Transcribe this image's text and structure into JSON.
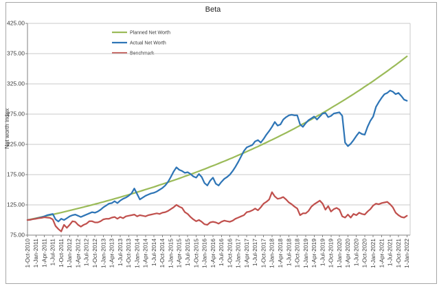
{
  "chart_data": {
    "type": "line",
    "title": "Beta",
    "y_axis_title": "Net worth index",
    "ylim": [
      75,
      425
    ],
    "y_ticks": [
      425,
      375,
      325,
      275,
      225,
      175,
      125,
      75
    ],
    "y_tick_labels": [
      "425.00",
      "375.00",
      "325.00",
      "275.00",
      "225.00",
      "175.00",
      "125.00",
      "75.00"
    ],
    "grid": "horizontal-only",
    "legend_position": "inside-top-left-of-plot",
    "x_resolution": "monthly",
    "months_per_tick": 3,
    "x_tick_labels": [
      "1-Oct-2010",
      "1-Jan-2011",
      "1-Apr-2011",
      "1-Jul-2011",
      "1-Oct-2011",
      "1-Jan-2012",
      "1-Apr-2012",
      "1-Jul-2012",
      "1-Oct-2012",
      "1-Jan-2013",
      "1-Apr-2013",
      "1-Jul-2013",
      "1-Oct-2013",
      "1-Jan-2014",
      "1-Apr-2014",
      "1-Jul-2014",
      "1-Oct-2014",
      "1-Jan-2015",
      "1-Apr-2015",
      "1-Jul-2015",
      "1-Oct-2015",
      "1-Jan-2016",
      "1-Apr-2016",
      "1-Jul-2016",
      "1-Oct-2016",
      "1-Jan-2017",
      "1-Apr-2017",
      "1-Jul-2017",
      "1-Oct-2017",
      "1-Jan-2018",
      "1-Apr-2018",
      "1-Jul-2018",
      "1-Oct-2018",
      "1-Jan-2019",
      "1-Apr-2019",
      "1-Jul-2019",
      "1-Oct-2019",
      "1-Jan-2020",
      "1-Apr-2020",
      "1-Jul-2020",
      "1-Oct-2020",
      "1-Jan-2021",
      "1-Apr-2021",
      "1-Jul-2021",
      "1-Oct-2021",
      "1-Jan-2022"
    ],
    "series": [
      {
        "name": "Planned Net Worth",
        "color": "#9BBB59",
        "values": [
          100,
          101,
          102,
          102.9,
          104,
          105,
          106,
          107,
          108.1,
          109.1,
          110.2,
          111.3,
          112.3,
          113.4,
          114.5,
          115.7,
          116.8,
          117.9,
          119.1,
          120.2,
          121.4,
          122.6,
          123.8,
          125,
          126.2,
          127.4,
          128.7,
          129.9,
          131.2,
          132.5,
          133.8,
          135.1,
          136.4,
          137.7,
          139.1,
          140.4,
          141.8,
          143.2,
          144.6,
          146,
          147.4,
          148.9,
          150.3,
          151.8,
          153.2,
          154.7,
          156.2,
          157.8,
          159.3,
          160.9,
          162.4,
          164,
          165.6,
          167.2,
          168.8,
          170.5,
          172.2,
          173.8,
          175.5,
          177.2,
          179,
          180.7,
          182.5,
          184.2,
          186,
          187.9,
          189.7,
          191.5,
          193.4,
          195.3,
          197.2,
          199.1,
          201.1,
          203,
          205,
          207,
          209,
          211,
          213.1,
          215.2,
          217.3,
          219.4,
          221.5,
          223.7,
          225.9,
          228.1,
          230.3,
          232.5,
          234.8,
          237.1,
          239.4,
          241.7,
          244.1,
          246.5,
          248.9,
          251.3,
          253.7,
          256.2,
          258.7,
          261.2,
          263.8,
          266.4,
          269,
          271.6,
          274.2,
          276.9,
          279.6,
          282.3,
          285.1,
          287.9,
          290.7,
          293.5,
          296.4,
          299.2,
          302.2,
          305.1,
          308.1,
          311.1,
          314.1,
          317.2,
          320.3,
          323.4,
          326.5,
          329.7,
          332.9,
          336.2,
          339.5,
          342.8,
          346.1,
          349.5,
          352.9,
          356.3,
          359.8,
          363.3,
          366.9,
          370.4
        ]
      },
      {
        "name": "Actual Net Worth",
        "color": "#2E75B6",
        "values": [
          100,
          100.5,
          101.5,
          102.5,
          103.5,
          104.5,
          106,
          108,
          109,
          110,
          101,
          97.5,
          102,
          100,
          103,
          106,
          108,
          109,
          107,
          105,
          107,
          109,
          111,
          113,
          112,
          114,
          117,
          121,
          124,
          127,
          128,
          131,
          128,
          132,
          135,
          137,
          140,
          144,
          152,
          143,
          134,
          137,
          140,
          142,
          144,
          145,
          147,
          150,
          153,
          157,
          163,
          171,
          180,
          187,
          183,
          181,
          178,
          179,
          176,
          172,
          170,
          176,
          171,
          161,
          157,
          165,
          170,
          160,
          157,
          163,
          168,
          171,
          175,
          181,
          188,
          196,
          205,
          214,
          220,
          222,
          224,
          230,
          232,
          228,
          234,
          241,
          247,
          254,
          262,
          256,
          258,
          266,
          270,
          273,
          274,
          273,
          273,
          258,
          254,
          260,
          265,
          268,
          271,
          266,
          271,
          276,
          277,
          270,
          272,
          276,
          277,
          278,
          272,
          228,
          222,
          226,
          232,
          239,
          245,
          242,
          241,
          254,
          264,
          271,
          287,
          295,
          302,
          308,
          310,
          314,
          312,
          308,
          310,
          305,
          299,
          297
        ]
      },
      {
        "name": "Benchmark",
        "color": "#C0504D",
        "values": [
          100,
          100.5,
          101.5,
          102,
          103,
          103.5,
          104.5,
          104,
          103.5,
          101,
          90,
          85,
          81,
          92,
          87,
          92,
          98,
          97,
          92,
          89,
          92,
          94,
          98,
          98,
          96,
          96,
          98,
          101,
          102,
          102,
          104,
          105,
          102,
          105,
          103,
          106,
          107,
          108,
          109,
          106,
          108,
          107,
          106,
          108,
          109,
          110,
          111,
          110,
          112,
          113,
          115,
          118,
          121,
          125,
          122,
          120,
          113,
          110,
          105,
          101,
          98,
          100,
          97,
          93,
          92,
          96,
          97,
          96,
          94,
          97,
          99,
          98,
          97,
          99,
          102,
          104,
          106,
          108,
          113,
          114,
          116,
          119,
          116,
          121,
          127,
          130,
          134,
          146,
          139,
          135,
          136,
          138,
          134,
          129,
          126,
          122,
          119,
          108,
          111,
          111,
          115,
          122,
          126,
          129,
          132,
          127,
          117,
          123,
          114,
          118,
          120,
          117,
          106,
          104,
          109,
          104,
          110,
          108,
          112,
          110,
          109,
          114,
          118,
          124,
          127,
          126,
          128,
          129,
          130,
          126,
          121,
          112,
          108,
          105,
          104,
          107
        ]
      }
    ],
    "colors": {
      "gridline": "#C9C9C9",
      "axis": "#808080",
      "text": "#3A3A3A",
      "border": "#A6A6A6",
      "title": "#1F1F1F"
    }
  }
}
